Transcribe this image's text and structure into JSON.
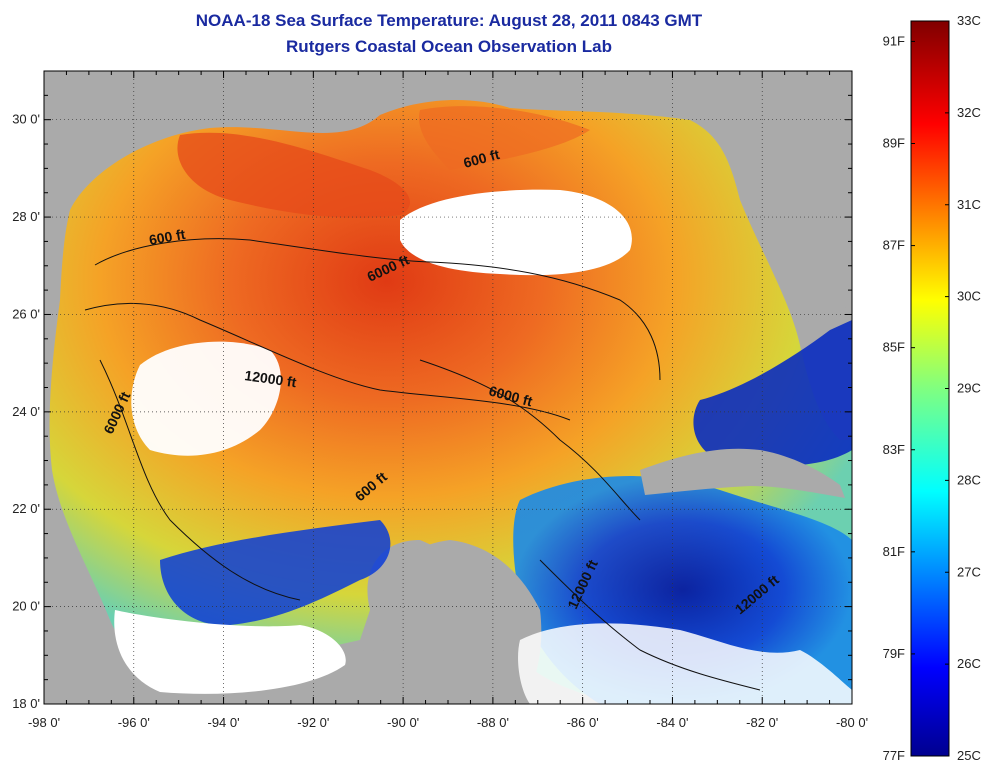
{
  "header": {
    "title": "NOAA-18 Sea Surface Temperature:  August 28, 2011 0843 GMT",
    "subtitle": "Rutgers Coastal Ocean Observation Lab"
  },
  "map": {
    "region": "Gulf of Mexico",
    "lon_range": [
      -98,
      -80
    ],
    "lat_range": [
      18,
      31
    ],
    "lon_ticks": [
      "-98 0'",
      "-96 0'",
      "-94 0'",
      "-92 0'",
      "-90 0'",
      "-88 0'",
      "-86 0'",
      "-84 0'",
      "-82 0'",
      "-80 0'"
    ],
    "lat_ticks": [
      "18 0'",
      "20 0'",
      "22 0'",
      "24 0'",
      "26 0'",
      "28 0'",
      "30 0'"
    ],
    "contour_labels": [
      "600 ft",
      "600 ft",
      "600 ft",
      "6000 ft",
      "6000 ft",
      "6000 ft",
      "12000 ft",
      "12000 ft",
      "12000 ft"
    ],
    "colors": {
      "land": "#aaaaaa",
      "no_data": "#ffffff",
      "warm": "#e8501c",
      "cold": "#0010a0"
    }
  },
  "colorbar": {
    "celsius_labels": [
      "33C",
      "32C",
      "31C",
      "30C",
      "29C",
      "28C",
      "27C",
      "26C",
      "25C"
    ],
    "fahrenheit_labels": [
      "91F",
      "89F",
      "87F",
      "85F",
      "83F",
      "81F",
      "79F",
      "77F"
    ],
    "celsius_values": [
      33,
      32,
      31,
      30,
      29,
      28,
      27,
      26,
      25
    ],
    "fahrenheit_values": [
      91,
      89,
      87,
      85,
      83,
      81,
      79,
      77
    ],
    "range_c": [
      25,
      33
    ]
  }
}
